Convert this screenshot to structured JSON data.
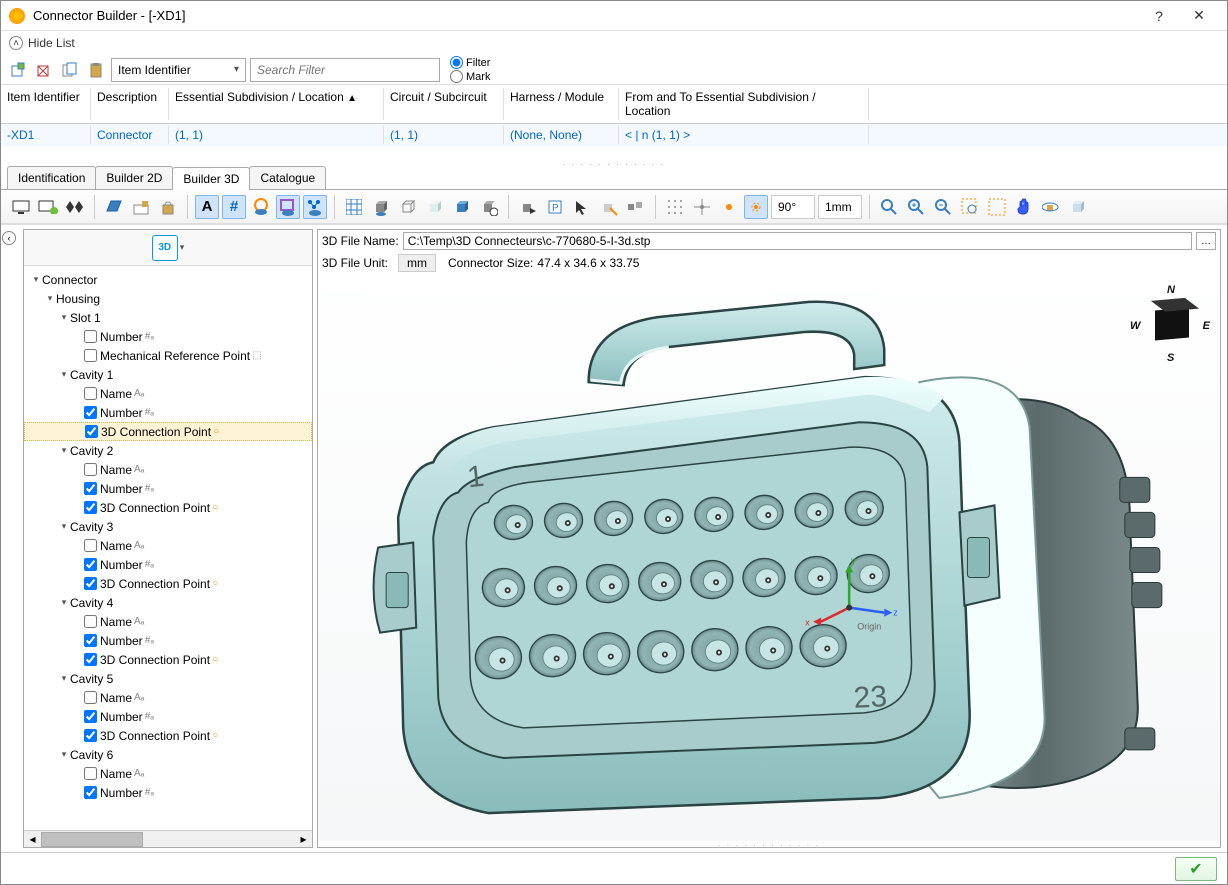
{
  "window": {
    "title": "Connector Builder - [-XD1]"
  },
  "hide_list": {
    "label": "Hide List"
  },
  "toolbar1": {
    "dropdown_label": "Item Identifier",
    "search_placeholder": "Search Filter",
    "radio_filter": "Filter",
    "radio_mark": "Mark"
  },
  "grid": {
    "headers": {
      "c0": "Item Identifier",
      "c1": "Description",
      "c2": "Essential Subdivision / Location",
      "c3": "Circuit / Subcircuit",
      "c4": "Harness / Module",
      "c5": "From and To Essential Subdivision / Location"
    },
    "row": {
      "c0": "-XD1",
      "c1": "Connector",
      "c2": "(1, 1)",
      "c3": "(1, 1)",
      "c4": "(None, None)",
      "c5": "<  | n (1, 1) >"
    }
  },
  "tabs": {
    "t0": "Identification",
    "t1": "Builder 2D",
    "t2": "Builder 3D",
    "t3": "Catalogue"
  },
  "toolbar2": {
    "angle": "90°",
    "dist": "1mm"
  },
  "tree": {
    "root": "Connector",
    "housing": "Housing",
    "slot1": "Slot 1",
    "number": "Number",
    "mech_ref": "Mechanical Reference Point",
    "cavity": "Cavity",
    "name": "Name",
    "conn3d": "3D Connection Point"
  },
  "viewport": {
    "file_name_lbl": "3D File Name:",
    "file_name_val": "C:\\Temp\\3D Connecteurs\\c-770680-5-I-3d.stp",
    "unit_lbl": "3D File Unit:",
    "unit_val": "mm",
    "size_lbl": "Connector Size:",
    "size_val": "47.4 x 34.6 x 33.75",
    "compass": {
      "n": "N",
      "s": "S",
      "e": "E",
      "w": "W"
    },
    "origin_label": "Origin",
    "pin_labels": {
      "one": "1",
      "twentythree": "23"
    },
    "axes": {
      "x": "x",
      "y": "y",
      "z": "z"
    }
  },
  "connector_style": {
    "body_fill": "#b8dcdc",
    "body_stroke": "#2a4444",
    "body_hilite": "#e8f5f5",
    "rear_dark": "#6b7b7b",
    "text_color": "#556666"
  }
}
